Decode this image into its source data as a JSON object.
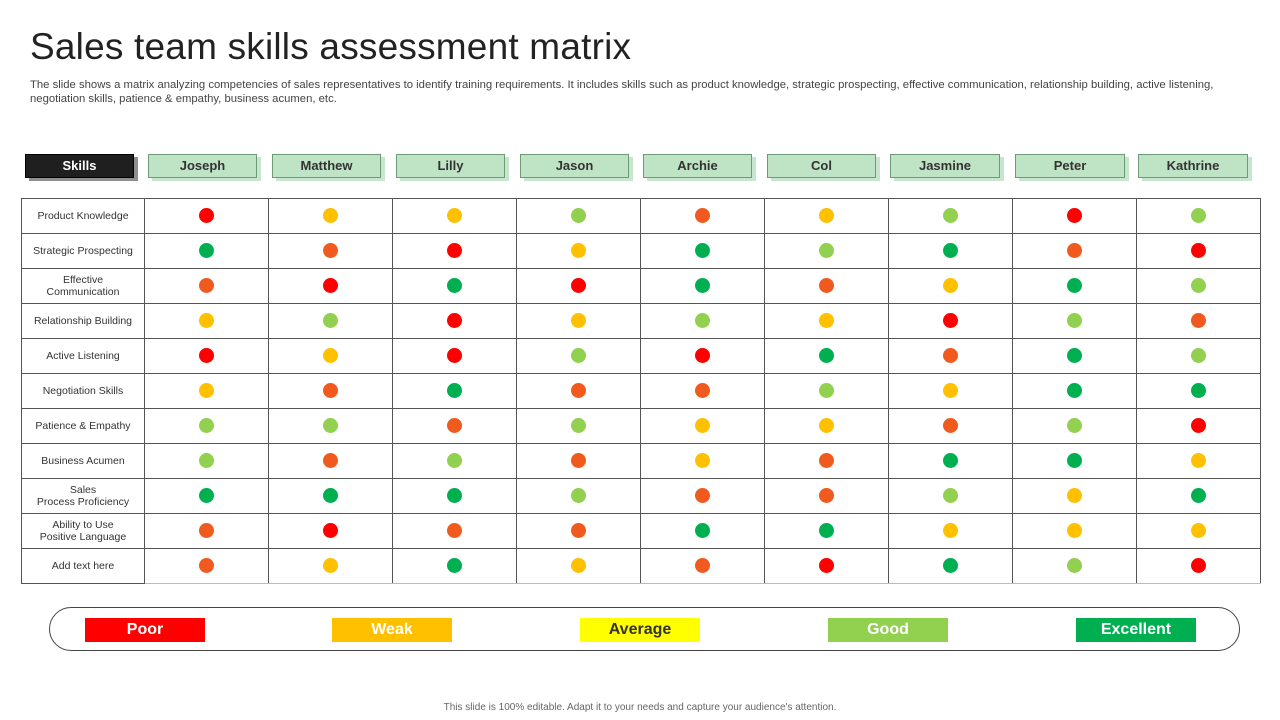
{
  "title": "Sales team skills assessment matrix",
  "subtitle": "The slide shows a matrix analyzing competencies of sales representatives to identify training requirements. It includes skills such as product knowledge, strategic prospecting, effective communication, relationship building, active listening, negotiation skills, patience & empathy, business acumen, etc.",
  "header": {
    "skills_label": "Skills",
    "people": [
      "Joseph",
      "Matthew",
      "Lilly",
      "Jason",
      "Archie",
      "Col",
      "Jasmine",
      "Peter",
      "Kathrine"
    ]
  },
  "colors": {
    "poor": "#ff0000",
    "weak": "#ffc000",
    "average": "#ffff00",
    "good": "#92d050",
    "excellent": "#00b050",
    "orange_dot": "#f05a1e",
    "header_green": "#bfe3c5",
    "header_dark": "#1f1f1f"
  },
  "dot_colors": {
    "R": "#ff0000",
    "O": "#f05a1e",
    "Y": "#ffc000",
    "L": "#92d050",
    "G": "#00b050"
  },
  "rows": [
    {
      "skill": "Product Knowledge",
      "ratings": [
        "R",
        "Y",
        "Y",
        "L",
        "O",
        "Y",
        "L",
        "R",
        "L"
      ]
    },
    {
      "skill": "Strategic Prospecting",
      "ratings": [
        "G",
        "O",
        "R",
        "Y",
        "G",
        "L",
        "G",
        "O",
        "R"
      ]
    },
    {
      "skill": "Effective\nCommunication",
      "ratings": [
        "O",
        "R",
        "G",
        "R",
        "G",
        "O",
        "Y",
        "G",
        "L"
      ]
    },
    {
      "skill": "Relationship  Building",
      "ratings": [
        "Y",
        "L",
        "R",
        "Y",
        "L",
        "Y",
        "R",
        "L",
        "O"
      ]
    },
    {
      "skill": "Active Listening",
      "ratings": [
        "R",
        "Y",
        "R",
        "L",
        "R",
        "G",
        "O",
        "G",
        "L"
      ]
    },
    {
      "skill": "Negotiation  Skills",
      "ratings": [
        "Y",
        "O",
        "G",
        "O",
        "O",
        "L",
        "Y",
        "G",
        "G"
      ]
    },
    {
      "skill": "Patience  & Empathy",
      "ratings": [
        "L",
        "L",
        "O",
        "L",
        "Y",
        "Y",
        "O",
        "L",
        "R"
      ]
    },
    {
      "skill": "Business Acumen",
      "ratings": [
        "L",
        "O",
        "L",
        "O",
        "Y",
        "O",
        "G",
        "G",
        "Y"
      ]
    },
    {
      "skill": "Sales\nProcess Proficiency",
      "ratings": [
        "G",
        "G",
        "G",
        "L",
        "O",
        "O",
        "L",
        "Y",
        "G"
      ]
    },
    {
      "skill": "Ability to Use\nPositive Language",
      "ratings": [
        "O",
        "R",
        "O",
        "O",
        "G",
        "G",
        "Y",
        "Y",
        "Y"
      ]
    },
    {
      "skill": "Add text here",
      "ratings": [
        "O",
        "Y",
        "G",
        "Y",
        "O",
        "R",
        "G",
        "L",
        "R"
      ]
    }
  ],
  "legend": [
    {
      "label": "Poor",
      "color": "#ff0000",
      "dark_text": false
    },
    {
      "label": "Weak",
      "color": "#ffc000",
      "dark_text": false
    },
    {
      "label": "Average",
      "color": "#ffff00",
      "dark_text": true
    },
    {
      "label": "Good",
      "color": "#92d050",
      "dark_text": false
    },
    {
      "label": "Excellent",
      "color": "#00b050",
      "dark_text": false
    }
  ],
  "footer": "This slide is 100% editable. Adapt it to your needs and capture your audience's attention."
}
